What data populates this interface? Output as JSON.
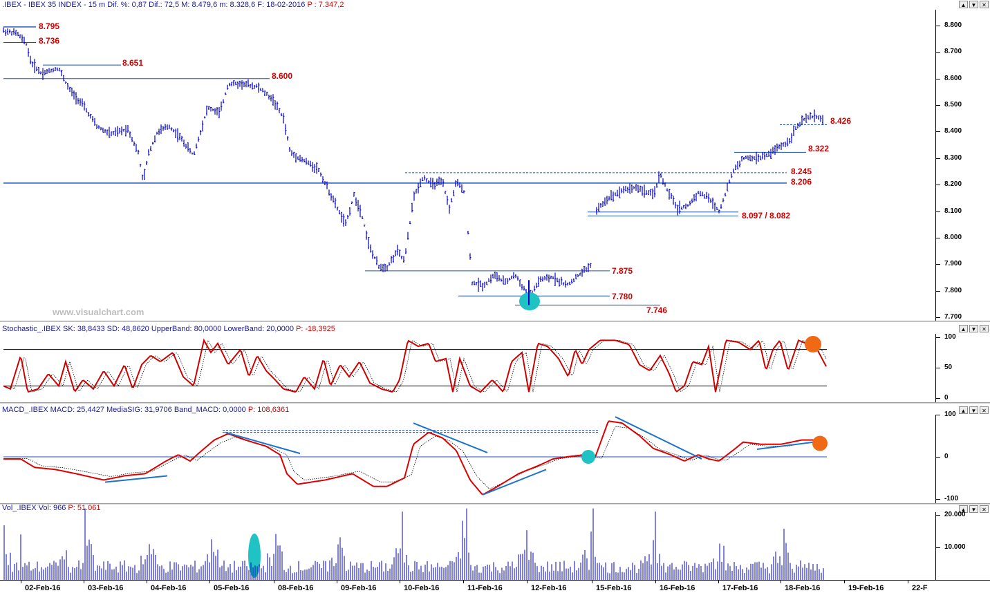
{
  "price_panel": {
    "header_prefix": ".IBEX - IBEX 35 INDEX - 15 m  Dif. %: 0,87  Dif.: 72,5  M: 8.479,6  m: 8.328,6  F: 18-02-2016",
    "header_p": "P : 7.347,2",
    "watermark": "www.visualchart.com",
    "y_ticks": [
      "8.800",
      "8.700",
      "8.600",
      "8.500",
      "8.400",
      "8.300",
      "8.200",
      "8.100",
      "8.000",
      "7.900",
      "7.800",
      "7.700"
    ],
    "levels": [
      "8.795",
      "8.736",
      "8.651",
      "8.600",
      "8.426",
      "8.322",
      "8.245",
      "8.206",
      "8.097 / 8.082",
      "7.875",
      "7.780",
      "7.746"
    ]
  },
  "stochastic_panel": {
    "header_prefix": "Stochastic_.IBEX  SK: 38,8433  SD: 48,8620  UpperBand: 80,0000  LowerBand: 20,0000",
    "header_p": "P: -18,3925",
    "y_ticks": [
      "100",
      "50",
      "0"
    ]
  },
  "macd_panel": {
    "header_prefix": "MACD_.IBEX  MACD: 25,4427  MediaSIG: 31,9706  Band_MACD: 0,0000",
    "header_p": "P: 108,6361",
    "y_ticks": [
      "100",
      "0",
      "-100"
    ]
  },
  "volume_panel": {
    "header_prefix": "Vol_.IBEX  Vol: 966",
    "header_p": "P: 51.061",
    "y_ticks": [
      "20.000",
      "10.000"
    ]
  },
  "date_axis": [
    "02-Feb-16",
    "03-Feb-16",
    "04-Feb-16",
    "05-Feb-16",
    "08-Feb-16",
    "09-Feb-16",
    "10-Feb-16",
    "11-Feb-16",
    "12-Feb-16",
    "15-Feb-16",
    "16-Feb-16",
    "17-Feb-16",
    "18-Feb-16",
    "19-Feb-16",
    "22-F"
  ],
  "window_buttons": [
    "▲",
    "▼",
    "✕"
  ],
  "colors": {
    "price": "#0000cc",
    "level_text": "#d40000",
    "stoch_sk": "#cc0000",
    "macd": "#dd0000",
    "trendline": "#1e73c8",
    "highlight_cyan": "#1fc3c3",
    "highlight_orange": "#f06a16",
    "volume": "#0000bb"
  },
  "chart_data": [
    {
      "type": "line",
      "title": "IBEX 35 INDEX - 15 m",
      "x": [
        "02-Feb-16",
        "03-Feb-16",
        "04-Feb-16",
        "05-Feb-16",
        "08-Feb-16",
        "09-Feb-16",
        "10-Feb-16",
        "11-Feb-16",
        "12-Feb-16",
        "15-Feb-16",
        "16-Feb-16",
        "17-Feb-16",
        "18-Feb-16"
      ],
      "series": [
        {
          "name": ".IBEX",
          "values": [
            8736,
            8480,
            8420,
            8560,
            8330,
            7900,
            8210,
            7830,
            7870,
            8200,
            8110,
            8300,
            8460
          ]
        }
      ],
      "ylim": [
        7700,
        8800
      ],
      "horizontal_levels": [
        8795,
        8736,
        8651,
        8600,
        8426,
        8322,
        8245,
        8206,
        8097,
        8082,
        7875,
        7780,
        7746
      ]
    },
    {
      "type": "line",
      "title": "Stochastic_.IBEX",
      "series": [
        {
          "name": "SK",
          "values": [
            38.8433
          ]
        },
        {
          "name": "SD",
          "values": [
            48.862
          ]
        }
      ],
      "bands": [
        80,
        20
      ],
      "ylim": [
        0,
        100
      ]
    },
    {
      "type": "line",
      "title": "MACD_.IBEX",
      "series": [
        {
          "name": "MACD",
          "values": [
            25.4427
          ]
        },
        {
          "name": "MediaSIG",
          "values": [
            31.9706
          ]
        }
      ],
      "ylim": [
        -100,
        100
      ]
    },
    {
      "type": "bar",
      "title": "Vol_.IBEX",
      "series": [
        {
          "name": "Vol",
          "values": [
            966
          ]
        }
      ],
      "ylim": [
        0,
        20000
      ]
    }
  ]
}
